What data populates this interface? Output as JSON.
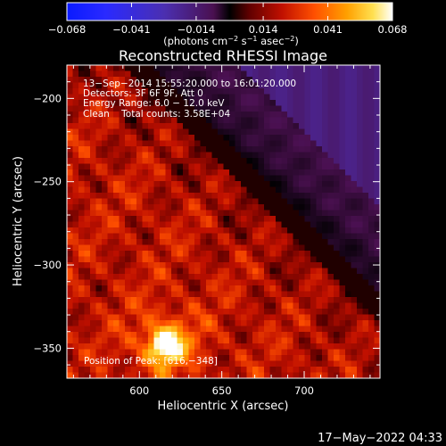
{
  "chart_data": {
    "type": "heatmap",
    "title": "Reconstructed RHESSI Image",
    "xlabel": "Heliocentric X (arcsec)",
    "ylabel": "Heliocentric Y (arcsec)",
    "xlim": [
      556,
      746
    ],
    "ylim": [
      -368,
      -180
    ],
    "x_ticks": [
      600,
      650,
      700
    ],
    "x_tick_labels": [
      "600",
      "650",
      "700"
    ],
    "y_ticks": [
      -200,
      -250,
      -300,
      -350
    ],
    "y_tick_labels": [
      "−200",
      "−250",
      "−300",
      "−350"
    ],
    "colorbar": {
      "range": [
        -0.068,
        0.068
      ],
      "ticks": [
        -0.068,
        -0.041,
        -0.014,
        0.014,
        0.041,
        0.068
      ],
      "tick_labels": [
        "−0.068",
        "−0.041",
        "−0.014",
        "0.014",
        "0.041",
        "0.068"
      ],
      "label_base": "(photons cm",
      "label_exp1": "−2",
      "label_mid1": " s",
      "label_exp2": "−1",
      "label_mid2": " asec",
      "label_exp3": "−2",
      "label_end": ")"
    },
    "info_lines": [
      "13−Sep−2014 15:55:20.000 to 16:01:20.000",
      "Detectors: 3F 6F 9F, Att 0",
      "Energy Range: 6.0 − 12.0 keV",
      "Clean    Total counts: 3.58E+04"
    ],
    "peak_label": "Position of Peak: [616,−348]",
    "peak_position": [
      616,
      -348
    ],
    "timestamp": "17−May−2022 04:33"
  }
}
